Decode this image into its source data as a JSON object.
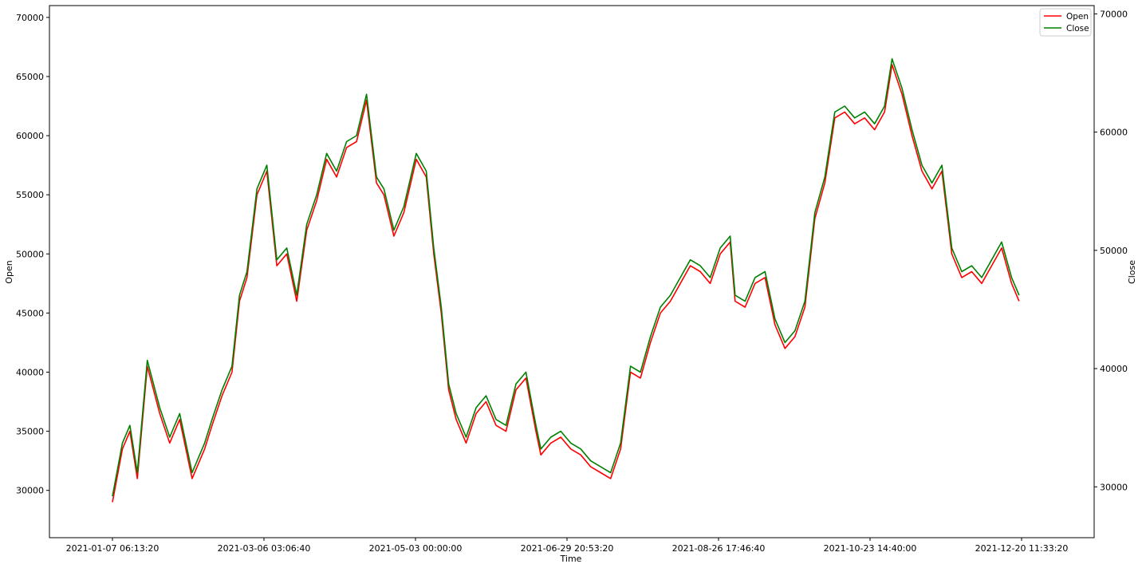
{
  "chart_data": {
    "type": "line",
    "xlabel": "Time",
    "ylabel_left": "Open",
    "ylabel_right": "Close",
    "x_ticks": [
      "2021-01-07 06:13:20",
      "2021-03-06 03:06:40",
      "2021-05-03 00:00:00",
      "2021-06-29 20:53:20",
      "2021-08-26 17:46:40",
      "2021-10-23 14:40:00",
      "2021-12-20 11:33:20"
    ],
    "x_range": [
      "2021-01-01",
      "2022-01-01"
    ],
    "y_left_ticks": [
      30000,
      35000,
      40000,
      45000,
      50000,
      55000,
      60000,
      65000,
      70000
    ],
    "y_left_range": [
      26000,
      71000
    ],
    "y_right_ticks": [
      30000,
      40000,
      50000,
      60000,
      70000
    ],
    "y_right_range": [
      25700,
      70700
    ],
    "grid": false,
    "legend_position": "top-right",
    "series": [
      {
        "name": "Open",
        "color": "#ff0000",
        "x": [
          "2021-01-01",
          "2021-01-05",
          "2021-01-08",
          "2021-01-11",
          "2021-01-15",
          "2021-01-20",
          "2021-01-24",
          "2021-01-28",
          "2021-02-02",
          "2021-02-07",
          "2021-02-10",
          "2021-02-14",
          "2021-02-18",
          "2021-02-21",
          "2021-02-24",
          "2021-02-28",
          "2021-03-04",
          "2021-03-08",
          "2021-03-12",
          "2021-03-16",
          "2021-03-20",
          "2021-03-24",
          "2021-03-28",
          "2021-04-01",
          "2021-04-05",
          "2021-04-09",
          "2021-04-13",
          "2021-04-17",
          "2021-04-20",
          "2021-04-24",
          "2021-04-28",
          "2021-05-03",
          "2021-05-07",
          "2021-05-10",
          "2021-05-13",
          "2021-05-16",
          "2021-05-19",
          "2021-05-23",
          "2021-05-27",
          "2021-05-31",
          "2021-06-04",
          "2021-06-08",
          "2021-06-12",
          "2021-06-16",
          "2021-06-20",
          "2021-06-22",
          "2021-06-26",
          "2021-06-30",
          "2021-07-04",
          "2021-07-08",
          "2021-07-12",
          "2021-07-16",
          "2021-07-20",
          "2021-07-24",
          "2021-07-28",
          "2021-08-01",
          "2021-08-05",
          "2021-08-09",
          "2021-08-13",
          "2021-08-17",
          "2021-08-21",
          "2021-08-25",
          "2021-08-29",
          "2021-09-02",
          "2021-09-06",
          "2021-09-08",
          "2021-09-12",
          "2021-09-16",
          "2021-09-20",
          "2021-09-24",
          "2021-09-28",
          "2021-10-02",
          "2021-10-06",
          "2021-10-10",
          "2021-10-14",
          "2021-10-18",
          "2021-10-22",
          "2021-10-26",
          "2021-10-30",
          "2021-11-03",
          "2021-11-07",
          "2021-11-10",
          "2021-11-14",
          "2021-11-18",
          "2021-11-22",
          "2021-11-26",
          "2021-11-30",
          "2021-12-04",
          "2021-12-08",
          "2021-12-12",
          "2021-12-16",
          "2021-12-20",
          "2021-12-24",
          "2021-12-28",
          "2021-12-31"
        ],
        "values": [
          29000,
          33500,
          35000,
          31000,
          40500,
          36500,
          34000,
          36000,
          31000,
          33500,
          35500,
          38000,
          40000,
          46000,
          48000,
          55000,
          57000,
          49000,
          50000,
          46000,
          52000,
          54500,
          58000,
          56500,
          59000,
          59500,
          63000,
          56000,
          55000,
          51500,
          53500,
          58000,
          56500,
          50000,
          45000,
          38500,
          36000,
          34000,
          36500,
          37500,
          35500,
          35000,
          38500,
          39500,
          35000,
          33000,
          34000,
          34500,
          33500,
          33000,
          32000,
          31500,
          31000,
          33500,
          40000,
          39500,
          42500,
          45000,
          46000,
          47500,
          49000,
          48500,
          47500,
          50000,
          51000,
          46000,
          45500,
          47500,
          48000,
          44000,
          42000,
          43000,
          45500,
          53000,
          56000,
          61500,
          62000,
          61000,
          61500,
          60500,
          62000,
          66000,
          63500,
          60000,
          57000,
          55500,
          57000,
          50000,
          48000,
          48500,
          47500,
          49000,
          50500,
          47500,
          46000
        ]
      },
      {
        "name": "Close",
        "color": "#008000",
        "x": [
          "2021-01-01",
          "2021-01-05",
          "2021-01-08",
          "2021-01-11",
          "2021-01-15",
          "2021-01-20",
          "2021-01-24",
          "2021-01-28",
          "2021-02-02",
          "2021-02-07",
          "2021-02-10",
          "2021-02-14",
          "2021-02-18",
          "2021-02-21",
          "2021-02-24",
          "2021-02-28",
          "2021-03-04",
          "2021-03-08",
          "2021-03-12",
          "2021-03-16",
          "2021-03-20",
          "2021-03-24",
          "2021-03-28",
          "2021-04-01",
          "2021-04-05",
          "2021-04-09",
          "2021-04-13",
          "2021-04-17",
          "2021-04-20",
          "2021-04-24",
          "2021-04-28",
          "2021-05-03",
          "2021-05-07",
          "2021-05-10",
          "2021-05-13",
          "2021-05-16",
          "2021-05-19",
          "2021-05-23",
          "2021-05-27",
          "2021-05-31",
          "2021-06-04",
          "2021-06-08",
          "2021-06-12",
          "2021-06-16",
          "2021-06-20",
          "2021-06-22",
          "2021-06-26",
          "2021-06-30",
          "2021-07-04",
          "2021-07-08",
          "2021-07-12",
          "2021-07-16",
          "2021-07-20",
          "2021-07-24",
          "2021-07-28",
          "2021-08-01",
          "2021-08-05",
          "2021-08-09",
          "2021-08-13",
          "2021-08-17",
          "2021-08-21",
          "2021-08-25",
          "2021-08-29",
          "2021-09-02",
          "2021-09-06",
          "2021-09-08",
          "2021-09-12",
          "2021-09-16",
          "2021-09-20",
          "2021-09-24",
          "2021-09-28",
          "2021-10-02",
          "2021-10-06",
          "2021-10-10",
          "2021-10-14",
          "2021-10-18",
          "2021-10-22",
          "2021-10-26",
          "2021-10-30",
          "2021-11-03",
          "2021-11-07",
          "2021-11-10",
          "2021-11-14",
          "2021-11-18",
          "2021-11-22",
          "2021-11-26",
          "2021-11-30",
          "2021-12-04",
          "2021-12-08",
          "2021-12-12",
          "2021-12-16",
          "2021-12-20",
          "2021-12-24",
          "2021-12-28",
          "2021-12-31"
        ],
        "values": [
          29200,
          33700,
          35200,
          31200,
          40700,
          36700,
          34200,
          36200,
          31200,
          33700,
          35700,
          38200,
          40200,
          46200,
          48200,
          55200,
          57200,
          49200,
          50200,
          46200,
          52200,
          54700,
          58200,
          56700,
          59200,
          59700,
          63200,
          56200,
          55200,
          51700,
          53700,
          58200,
          56700,
          50200,
          45200,
          38700,
          36200,
          34200,
          36700,
          37700,
          35700,
          35200,
          38700,
          39700,
          35200,
          33200,
          34200,
          34700,
          33700,
          33200,
          32200,
          31700,
          31200,
          33700,
          40200,
          39700,
          42700,
          45200,
          46200,
          47700,
          49200,
          48700,
          47700,
          50200,
          51200,
          46200,
          45700,
          47700,
          48200,
          44200,
          42200,
          43200,
          45700,
          53200,
          56200,
          61700,
          62200,
          61200,
          61700,
          60700,
          62200,
          66200,
          63700,
          60200,
          57200,
          55700,
          57200,
          50200,
          48200,
          48700,
          47700,
          49200,
          50700,
          47700,
          46200
        ]
      }
    ]
  }
}
